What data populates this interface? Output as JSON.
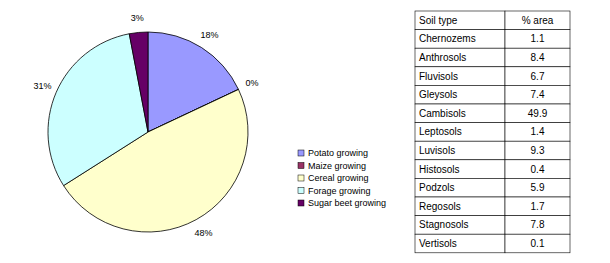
{
  "chart_data": {
    "type": "pie",
    "categories": [
      "Potato growing",
      "Maize growing",
      "Cereal growing",
      "Forage growing",
      "Sugar beet growing"
    ],
    "values": [
      18,
      0,
      48,
      31,
      3
    ],
    "value_labels": [
      "18%",
      "0%",
      "48%",
      "31%",
      "3%"
    ],
    "colors": [
      "#9999ff",
      "#993366",
      "#ffffcc",
      "#ccffff",
      "#660066"
    ],
    "data_labels": true,
    "legend": "right"
  },
  "table": {
    "header": [
      "Soil type",
      "% area"
    ],
    "rows": [
      [
        "Chernozems",
        1.1
      ],
      [
        "Anthrosols",
        8.4
      ],
      [
        "Fluvisols",
        6.7
      ],
      [
        "Gleysols",
        7.4
      ],
      [
        "Cambisols",
        49.9
      ],
      [
        "Leptosols",
        1.4
      ],
      [
        "Luvisols",
        9.3
      ],
      [
        "Histosols",
        0.4
      ],
      [
        "Podzols",
        5.9
      ],
      [
        "Regosols",
        1.7
      ],
      [
        "Stagnosols",
        7.8
      ],
      [
        "Vertisols",
        0.1
      ]
    ]
  }
}
